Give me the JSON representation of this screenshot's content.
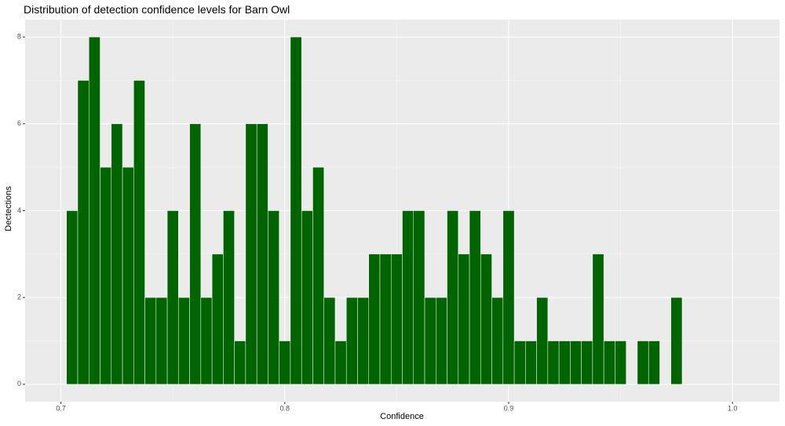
{
  "chart_data": {
    "type": "histogram",
    "title": "Distribution of detection confidence levels for Barn Owl",
    "x_label": "Confidence",
    "y_label": "Dectections",
    "color": "#006400",
    "bins": [
      0.7025,
      0.7075,
      0.7125,
      0.7175,
      0.7225,
      0.7275,
      0.7325,
      0.7375,
      0.7425,
      0.7475,
      0.7525,
      0.7575,
      0.7625,
      0.7675,
      0.7725,
      0.7775,
      0.7825,
      0.7875,
      0.7925,
      0.7975,
      0.8025,
      0.8075,
      0.8125,
      0.8175,
      0.8225,
      0.8275,
      0.8325,
      0.8375,
      0.8425,
      0.8475,
      0.8525,
      0.8575,
      0.8625,
      0.8675,
      0.8725,
      0.8775,
      0.8825,
      0.8875,
      0.8925,
      0.8975,
      0.9025,
      0.9075,
      0.9125,
      0.9175,
      0.9225,
      0.9275,
      0.9325,
      0.9375,
      0.9425,
      0.9475,
      0.9525,
      0.9575,
      0.9625,
      0.9675,
      0.9725,
      0.9775
    ],
    "counts": [
      4,
      7,
      8,
      5,
      6,
      5,
      7,
      2,
      2,
      4,
      2,
      6,
      2,
      3,
      4,
      1,
      6,
      6,
      4,
      1,
      8,
      4,
      5,
      2,
      1,
      2,
      2,
      3,
      3,
      3,
      4,
      4,
      2,
      2,
      4,
      3,
      4,
      3,
      2,
      4,
      1,
      1,
      2,
      1,
      1,
      1,
      1,
      3,
      1,
      1,
      0,
      1,
      1,
      0,
      2
    ],
    "xlim": [
      0.684,
      1.021
    ],
    "ylim": [
      -0.4,
      8.4
    ],
    "xticks": [
      0.7,
      0.8,
      0.9,
      {
        "value": 1.0,
        "label": "1.0"
      }
    ],
    "yticks": [
      0,
      2,
      4,
      6,
      8
    ],
    "grid": true
  }
}
